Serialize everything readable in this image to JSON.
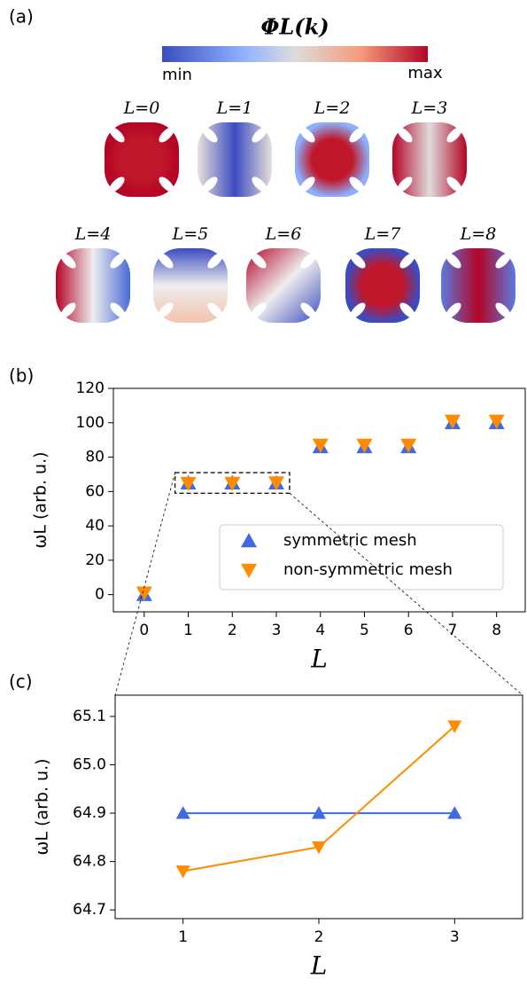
{
  "panel_a": {
    "label": "(a)",
    "colorbar_title": "ΦL(k)",
    "colorbar_min": "min",
    "colorbar_max": "max",
    "shapes": [
      "L=0",
      "L=1",
      "L=2",
      "L=3",
      "L=4",
      "L=5",
      "L=6",
      "L=7",
      "L=8"
    ]
  },
  "chart_data": [
    {
      "type": "scatter",
      "label": "(b)",
      "x_label": "L",
      "y_label": "ωL (arb. u.)",
      "x": [
        0,
        1,
        2,
        3,
        4,
        5,
        6,
        7,
        8
      ],
      "series": [
        {
          "name": "symmetric mesh",
          "color": "#4169e1",
          "marker": "triangle-up",
          "values": [
            0,
            64.9,
            64.9,
            64.9,
            86,
            86,
            86,
            100,
            100
          ]
        },
        {
          "name": "non-symmetric mesh",
          "color": "#ff8c00",
          "marker": "triangle-down",
          "values": [
            1,
            64.78,
            64.83,
            65.08,
            87,
            87,
            87,
            101,
            101
          ]
        }
      ],
      "xlim": [
        -0.7,
        8.65
      ],
      "ylim": [
        -10,
        120
      ],
      "xticks": [
        0,
        1,
        2,
        3,
        4,
        5,
        6,
        7,
        8
      ],
      "yticks": [
        0,
        20,
        40,
        60,
        80,
        100,
        120
      ],
      "legend": "center right",
      "inset_region": {
        "x": [
          0.7,
          3.3
        ],
        "y": [
          59,
          71
        ]
      }
    },
    {
      "type": "line",
      "label": "(c)",
      "x_label": "L",
      "y_label": "ωL (arb. u.)",
      "x": [
        1,
        2,
        3
      ],
      "series": [
        {
          "name": "symmetric mesh",
          "color": "#4169e1",
          "marker": "triangle-up",
          "values": [
            64.9,
            64.9,
            64.9
          ]
        },
        {
          "name": "non-symmetric mesh",
          "color": "#ff8c00",
          "marker": "triangle-down",
          "values": [
            64.78,
            64.83,
            65.08
          ]
        }
      ],
      "xlim": [
        0.5,
        3.5
      ],
      "ylim": [
        64.682,
        65.144
      ],
      "xticks": [
        1,
        2,
        3
      ],
      "yticks": [
        {
          "value": 64.7,
          "label": "64.7"
        },
        {
          "value": 64.8,
          "label": "64.8"
        },
        {
          "value": 64.9,
          "label": "64.9"
        },
        {
          "value": 65.0,
          "label": "65.0"
        },
        {
          "value": 65.1,
          "label": "65.1"
        }
      ]
    }
  ]
}
